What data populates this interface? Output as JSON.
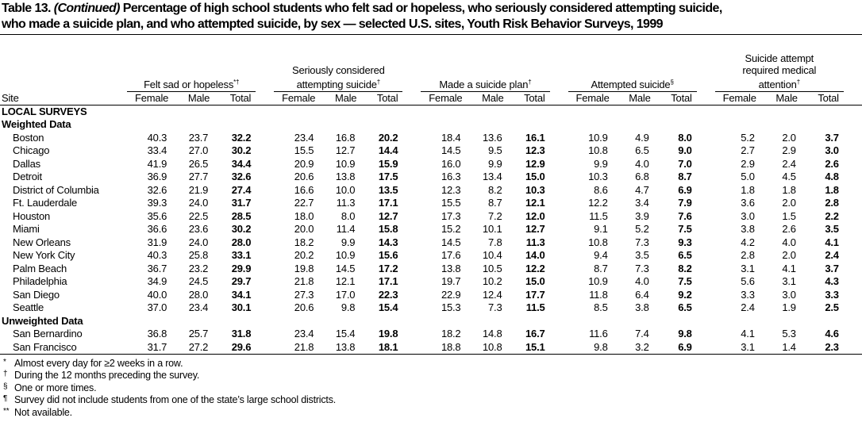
{
  "title": {
    "number": "Table 13.",
    "continued": "(Continued)",
    "line1": "Percentage of high school students who felt sad or hopeless, who seriously considered attempting suicide,",
    "line2": "who made a suicide plan, and who attempted suicide, by sex — selected U.S. sites, Youth Risk Behavior Surveys, 1999"
  },
  "header": {
    "site": "Site",
    "groups": [
      {
        "lines": [
          "Felt sad or hopeless"
        ],
        "notes": "*†"
      },
      {
        "lines": [
          "Seriously considered",
          "attempting suicide"
        ],
        "notes": "†"
      },
      {
        "lines": [
          "Made a suicide plan"
        ],
        "notes": "†"
      },
      {
        "lines": [
          "Attempted suicide"
        ],
        "notes": "§"
      },
      {
        "lines": [
          "Suicide attempt",
          "required medical",
          "attention"
        ],
        "notes": "†"
      }
    ],
    "sub": [
      "Female",
      "Male",
      "Total"
    ]
  },
  "table": {
    "section": "LOCAL SURVEYS",
    "blocks": [
      {
        "label": "Weighted Data",
        "rows": [
          [
            "Boston",
            "40.3",
            "23.7",
            "32.2",
            "23.4",
            "16.8",
            "20.2",
            "18.4",
            "13.6",
            "16.1",
            "10.9",
            "4.9",
            "8.0",
            "5.2",
            "2.0",
            "3.7"
          ],
          [
            "Chicago",
            "33.4",
            "27.0",
            "30.2",
            "15.5",
            "12.7",
            "14.4",
            "14.5",
            "9.5",
            "12.3",
            "10.8",
            "6.5",
            "9.0",
            "2.7",
            "2.9",
            "3.0"
          ],
          [
            "Dallas",
            "41.9",
            "26.5",
            "34.4",
            "20.9",
            "10.9",
            "15.9",
            "16.0",
            "9.9",
            "12.9",
            "9.9",
            "4.0",
            "7.0",
            "2.9",
            "2.4",
            "2.6"
          ],
          [
            "Detroit",
            "36.9",
            "27.7",
            "32.6",
            "20.6",
            "13.8",
            "17.5",
            "16.3",
            "13.4",
            "15.0",
            "10.3",
            "6.8",
            "8.7",
            "5.0",
            "4.5",
            "4.8"
          ],
          [
            "District of Columbia",
            "32.6",
            "21.9",
            "27.4",
            "16.6",
            "10.0",
            "13.5",
            "12.3",
            "8.2",
            "10.3",
            "8.6",
            "4.7",
            "6.9",
            "1.8",
            "1.8",
            "1.8"
          ],
          [
            "Ft. Lauderdale",
            "39.3",
            "24.0",
            "31.7",
            "22.7",
            "11.3",
            "17.1",
            "15.5",
            "8.7",
            "12.1",
            "12.2",
            "3.4",
            "7.9",
            "3.6",
            "2.0",
            "2.8"
          ],
          [
            "Houston",
            "35.6",
            "22.5",
            "28.5",
            "18.0",
            "8.0",
            "12.7",
            "17.3",
            "7.2",
            "12.0",
            "11.5",
            "3.9",
            "7.6",
            "3.0",
            "1.5",
            "2.2"
          ],
          [
            "Miami",
            "36.6",
            "23.6",
            "30.2",
            "20.0",
            "11.4",
            "15.8",
            "15.2",
            "10.1",
            "12.7",
            "9.1",
            "5.2",
            "7.5",
            "3.8",
            "2.6",
            "3.5"
          ],
          [
            "New Orleans",
            "31.9",
            "24.0",
            "28.0",
            "18.2",
            "9.9",
            "14.3",
            "14.5",
            "7.8",
            "11.3",
            "10.8",
            "7.3",
            "9.3",
            "4.2",
            "4.0",
            "4.1"
          ],
          [
            "New York City",
            "40.3",
            "25.8",
            "33.1",
            "20.2",
            "10.9",
            "15.6",
            "17.6",
            "10.4",
            "14.0",
            "9.4",
            "3.5",
            "6.5",
            "2.8",
            "2.0",
            "2.4"
          ],
          [
            "Palm Beach",
            "36.7",
            "23.2",
            "29.9",
            "19.8",
            "14.5",
            "17.2",
            "13.8",
            "10.5",
            "12.2",
            "8.7",
            "7.3",
            "8.2",
            "3.1",
            "4.1",
            "3.7"
          ],
          [
            "Philadelphia",
            "34.9",
            "24.5",
            "29.7",
            "21.8",
            "12.1",
            "17.1",
            "19.7",
            "10.2",
            "15.0",
            "10.9",
            "4.0",
            "7.5",
            "5.6",
            "3.1",
            "4.3"
          ],
          [
            "San Diego",
            "40.0",
            "28.0",
            "34.1",
            "27.3",
            "17.0",
            "22.3",
            "22.9",
            "12.4",
            "17.7",
            "11.8",
            "6.4",
            "9.2",
            "3.3",
            "3.0",
            "3.3"
          ],
          [
            "Seattle",
            "37.0",
            "23.4",
            "30.1",
            "20.6",
            "9.8",
            "15.4",
            "15.3",
            "7.3",
            "11.5",
            "8.5",
            "3.8",
            "6.5",
            "2.4",
            "1.9",
            "2.5"
          ]
        ]
      },
      {
        "label": "Unweighted Data",
        "rows": [
          [
            "San Bernardino",
            "36.8",
            "25.7",
            "31.8",
            "23.4",
            "15.4",
            "19.8",
            "18.2",
            "14.8",
            "16.7",
            "11.6",
            "7.4",
            "9.8",
            "4.1",
            "5.3",
            "4.6"
          ],
          [
            "San Francisco",
            "31.7",
            "27.2",
            "29.6",
            "21.8",
            "13.8",
            "18.1",
            "18.8",
            "10.8",
            "15.1",
            "9.8",
            "3.2",
            "6.9",
            "3.1",
            "1.4",
            "2.3"
          ]
        ]
      }
    ]
  },
  "footnotes": [
    {
      "mark": "*",
      "text": "Almost every day for ≥2 weeks in a row."
    },
    {
      "mark": "†",
      "text": "During the 12 months preceding the survey."
    },
    {
      "mark": "§",
      "text": "One or more times."
    },
    {
      "mark": "¶",
      "text": "Survey did not include students from one of the state’s large school districts."
    },
    {
      "mark": "**",
      "text": "Not available."
    }
  ]
}
